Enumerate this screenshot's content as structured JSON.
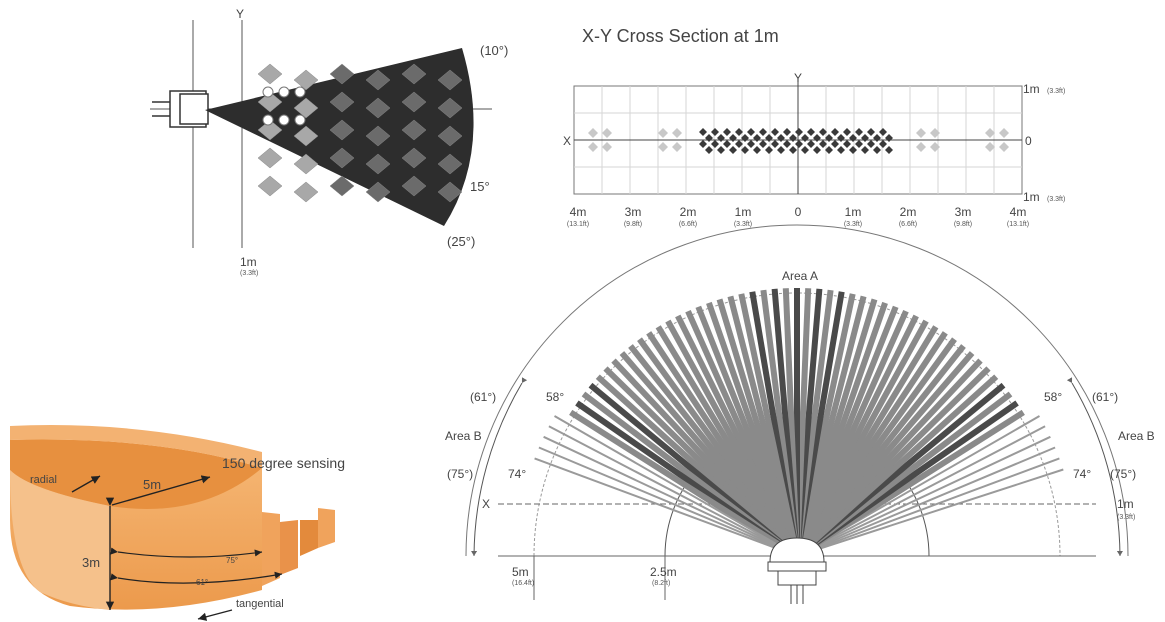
{
  "side_view": {
    "y_axis_label": "Y",
    "angle_10": "(10°)",
    "angle_15": "15°",
    "angle_25": "(25°)",
    "distance": "1m",
    "distance_ft": "(3.3ft)"
  },
  "cross_section": {
    "title": "X-Y Cross Section at 1m",
    "y_label": "Y",
    "x_label": "X",
    "top_right": "1m",
    "top_right_ft": "(3.3ft)",
    "zero_right": "0",
    "bottom_right": "1m",
    "bottom_right_ft": "(3.3ft)",
    "ticks": [
      {
        "m": "4m",
        "ft": "(13.1ft)"
      },
      {
        "m": "3m",
        "ft": "(9.8ft)"
      },
      {
        "m": "2m",
        "ft": "(6.6ft)"
      },
      {
        "m": "1m",
        "ft": "(3.3ft)"
      },
      {
        "m": "0",
        "ft": ""
      },
      {
        "m": "1m",
        "ft": "(3.3ft)"
      },
      {
        "m": "2m",
        "ft": "(6.6ft)"
      },
      {
        "m": "3m",
        "ft": "(9.8ft)"
      },
      {
        "m": "4m",
        "ft": "(13.1ft)"
      }
    ]
  },
  "fan": {
    "area_a": "Area A",
    "area_b": "Area B",
    "angle_58": "58°",
    "angle_61": "(61°)",
    "angle_74": "74°",
    "angle_75": "(75°)",
    "x_label": "X",
    "right_1m": "1m",
    "right_1m_ft": "(3.3ft)",
    "dist_5m": "5m",
    "dist_5m_ft": "(16.4ft)",
    "dist_25m": "2.5m",
    "dist_25m_ft": "(8.2ft)"
  },
  "volume": {
    "title": "150 degree sensing",
    "radial": "radial",
    "radius": "5m",
    "height": "3m",
    "angle_75": "75°",
    "angle_61": "61°",
    "tangential": "tangential"
  }
}
